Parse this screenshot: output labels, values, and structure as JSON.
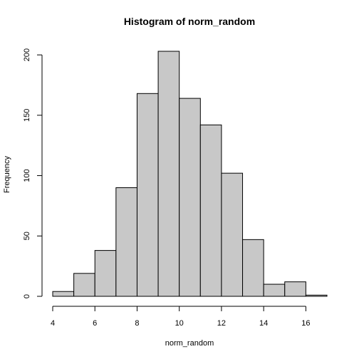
{
  "chart_data": {
    "type": "bar",
    "title": "Histogram of norm_random",
    "xlabel": "norm_random",
    "ylabel": "Frequency",
    "bins": [
      {
        "from": 4,
        "to": 5,
        "count": 4
      },
      {
        "from": 5,
        "to": 6,
        "count": 19
      },
      {
        "from": 6,
        "to": 7,
        "count": 38
      },
      {
        "from": 7,
        "to": 8,
        "count": 90
      },
      {
        "from": 8,
        "to": 9,
        "count": 168
      },
      {
        "from": 9,
        "to": 10,
        "count": 203
      },
      {
        "from": 10,
        "to": 11,
        "count": 164
      },
      {
        "from": 11,
        "to": 12,
        "count": 142
      },
      {
        "from": 12,
        "to": 13,
        "count": 102
      },
      {
        "from": 13,
        "to": 14,
        "count": 47
      },
      {
        "from": 14,
        "to": 15,
        "count": 10
      },
      {
        "from": 15,
        "to": 16,
        "count": 12
      },
      {
        "from": 16,
        "to": 17,
        "count": 1
      }
    ],
    "xticks": [
      4,
      6,
      8,
      10,
      12,
      14,
      16
    ],
    "yticks": [
      0,
      50,
      100,
      150,
      200
    ],
    "xlim": [
      4,
      17
    ],
    "ylim": [
      0,
      203
    ],
    "grid": false,
    "bar_color": "#c8c8c8",
    "edge_color": "#000000"
  }
}
